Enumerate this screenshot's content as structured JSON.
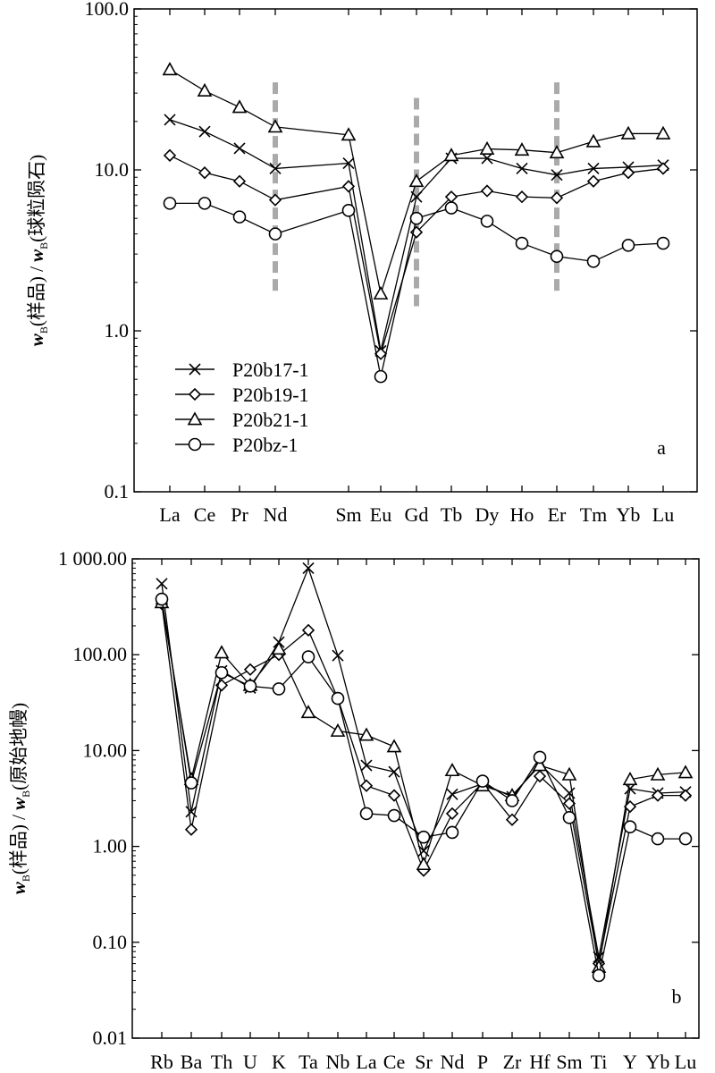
{
  "chart_data": [
    {
      "type": "line",
      "panel_label": "a",
      "yscale": "log",
      "ylim": [
        0.1,
        100
      ],
      "ylabel_parts": {
        "main": "w",
        "sub": "B",
        "paren": "(样品) / ",
        "main2": "w",
        "sub2": "B",
        "paren2": "(球粒陨石)"
      },
      "ytick_labels": [
        "0.1",
        "1.0",
        "10.0",
        "100.0"
      ],
      "ytick_values": [
        0.1,
        1,
        10,
        100
      ],
      "categories": [
        "La",
        "Ce",
        "Pr",
        "Nd",
        "Sm",
        "Eu",
        "Gd",
        "Tb",
        "Dy",
        "Ho",
        "Er",
        "Tm",
        "Yb",
        "Lu"
      ],
      "dashed_markers": [
        "Nd",
        "Gd",
        "Er"
      ],
      "dashed_ranges": [
        [
          1.7,
          35
        ],
        [
          1.3,
          28
        ],
        [
          1.7,
          35
        ]
      ],
      "legend_location": "lower-left",
      "series": [
        {
          "name": "P20b17-1",
          "marker": "x",
          "values": [
            20.5,
            17.3,
            13.6,
            10.2,
            11.0,
            0.75,
            6.8,
            11.8,
            11.8,
            10.2,
            9.3,
            10.2,
            10.4,
            10.7
          ]
        },
        {
          "name": "P20b19-1",
          "marker": "diamond",
          "values": [
            12.3,
            9.6,
            8.5,
            6.5,
            7.9,
            0.72,
            4.1,
            6.8,
            7.4,
            6.8,
            6.7,
            8.5,
            9.6,
            10.2
          ]
        },
        {
          "name": "P20b21-1",
          "marker": "triangle",
          "values": [
            42,
            31,
            24.5,
            18.5,
            16.5,
            1.7,
            8.5,
            12.3,
            13.5,
            13.3,
            12.8,
            15.0,
            16.8,
            16.8
          ]
        },
        {
          "name": "P20bz-1",
          "marker": "circle",
          "values": [
            6.2,
            6.2,
            5.1,
            4.0,
            5.6,
            0.52,
            5.0,
            5.8,
            4.8,
            3.5,
            2.9,
            2.7,
            3.4,
            3.5
          ]
        }
      ]
    },
    {
      "type": "line",
      "panel_label": "b",
      "yscale": "log",
      "ylim": [
        0.01,
        1000
      ],
      "ylabel_parts": {
        "main": "w",
        "sub": "B",
        "paren": "(样品) / ",
        "main2": "w",
        "sub2": "B",
        "paren2": "(原始地幔)"
      },
      "ytick_labels": [
        "0.01",
        "0.10",
        "1.00",
        "10.00",
        "100.00",
        "1 000.00"
      ],
      "ytick_values": [
        0.01,
        0.1,
        1,
        10,
        100,
        1000
      ],
      "categories": [
        "Rb",
        "Ba",
        "Th",
        "U",
        "K",
        "Ta",
        "Nb",
        "La",
        "Ce",
        "Sr",
        "Nd",
        "P",
        "Zr",
        "Hf",
        "Sm",
        "Ti",
        "Y",
        "Yb",
        "Lu"
      ],
      "series": [
        {
          "name": "P20b17-1",
          "marker": "x",
          "values": [
            550,
            2.3,
            68,
            45,
            135,
            800,
            98,
            7.0,
            6.0,
            0.9,
            3.5,
            4.5,
            3.3,
            7.3,
            3.6,
            0.07,
            4.0,
            3.6,
            3.7
          ]
        },
        {
          "name": "P20b19-1",
          "marker": "diamond",
          "values": [
            340,
            1.5,
            48,
            70,
            100,
            180,
            35,
            4.3,
            3.4,
            0.56,
            2.2,
            4.6,
            1.9,
            5.4,
            2.8,
            0.06,
            2.6,
            3.4,
            3.4
          ]
        },
        {
          "name": "P20b21-1",
          "marker": "triangle",
          "values": [
            350,
            5.0,
            105,
            48,
            115,
            25,
            16,
            14.5,
            11,
            0.65,
            6.2,
            4.3,
            3.4,
            7.0,
            5.6,
            0.055,
            5.0,
            5.6,
            5.9
          ]
        },
        {
          "name": "P20bz-1",
          "marker": "circle",
          "values": [
            380,
            4.6,
            65,
            47,
            44,
            95,
            35,
            2.2,
            2.1,
            1.25,
            1.4,
            4.8,
            3.0,
            8.5,
            2.0,
            0.045,
            1.6,
            1.2,
            1.2
          ]
        }
      ]
    }
  ]
}
